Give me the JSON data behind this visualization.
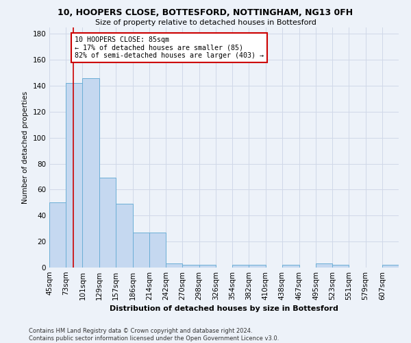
{
  "title": "10, HOOPERS CLOSE, BOTTESFORD, NOTTINGHAM, NG13 0FH",
  "subtitle": "Size of property relative to detached houses in Bottesford",
  "xlabel": "Distribution of detached houses by size in Bottesford",
  "ylabel": "Number of detached properties",
  "footer_line1": "Contains HM Land Registry data © Crown copyright and database right 2024.",
  "footer_line2": "Contains public sector information licensed under the Open Government Licence v3.0.",
  "bar_edges": [
    45,
    73,
    101,
    129,
    157,
    186,
    214,
    242,
    270,
    298,
    326,
    354,
    382,
    410,
    438,
    467,
    495,
    523,
    551,
    579,
    607
  ],
  "bar_heights": [
    50,
    142,
    146,
    69,
    49,
    27,
    27,
    3,
    2,
    2,
    0,
    2,
    2,
    0,
    2,
    0,
    3,
    2,
    0,
    0,
    2
  ],
  "bar_color": "#c5d8f0",
  "bar_edge_color": "#6baed6",
  "property_size": 85,
  "annotation_line1": "10 HOOPERS CLOSE: 85sqm",
  "annotation_line2": "← 17% of detached houses are smaller (85)",
  "annotation_line3": "82% of semi-detached houses are larger (403) →",
  "annotation_box_color": "#ffffff",
  "annotation_box_edge": "#cc0000",
  "redline_color": "#cc0000",
  "ylim": [
    0,
    185
  ],
  "yticks": [
    0,
    20,
    40,
    60,
    80,
    100,
    120,
    140,
    160,
    180
  ],
  "grid_color": "#d0d8e8",
  "bg_color": "#edf2f9"
}
